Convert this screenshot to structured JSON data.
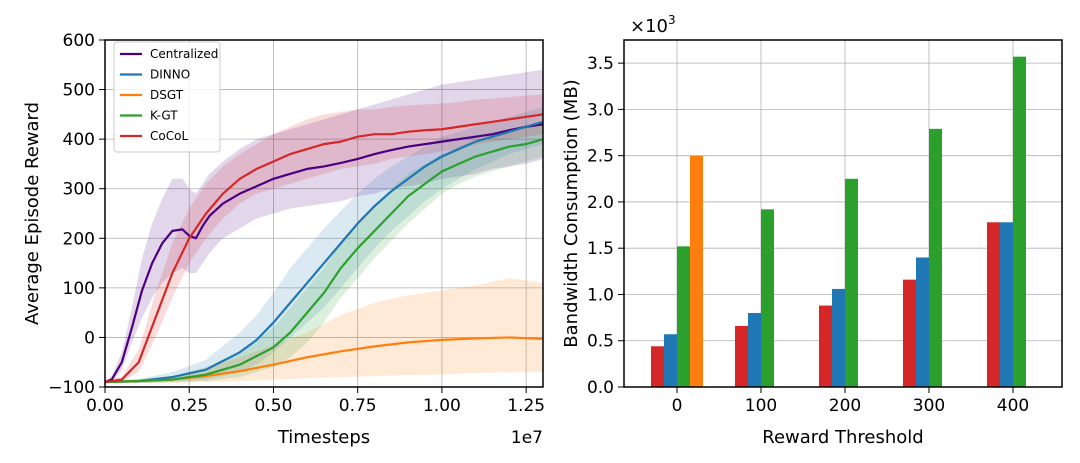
{
  "chart_data": [
    {
      "type": "line",
      "xlabel": "Timesteps",
      "ylabel": "Average Episode Reward",
      "x_offset_label": "1e7",
      "xlim": [
        0,
        1.3
      ],
      "ylim": [
        -100,
        600
      ],
      "xticks": [
        0.0,
        0.25,
        0.5,
        0.75,
        1.0,
        1.25
      ],
      "xtick_labels": [
        "0.00",
        "0.25",
        "0.50",
        "0.75",
        "1.00",
        "1.25"
      ],
      "yticks": [
        -100,
        0,
        100,
        200,
        300,
        400,
        500,
        600
      ],
      "ytick_labels": [
        "−100",
        "0",
        "100",
        "200",
        "300",
        "400",
        "500",
        "600"
      ],
      "grid": true,
      "legend_position": "top-left",
      "series": [
        {
          "name": "Centralized",
          "color": "#4b0082",
          "x": [
            0.0,
            0.02,
            0.05,
            0.08,
            0.11,
            0.14,
            0.17,
            0.2,
            0.23,
            0.25,
            0.27,
            0.29,
            0.31,
            0.35,
            0.4,
            0.45,
            0.5,
            0.55,
            0.6,
            0.65,
            0.7,
            0.75,
            0.8,
            0.85,
            0.9,
            0.95,
            1.0,
            1.05,
            1.1,
            1.15,
            1.2,
            1.25,
            1.3
          ],
          "y": [
            -90,
            -85,
            -50,
            20,
            95,
            150,
            190,
            215,
            218,
            205,
            200,
            225,
            245,
            270,
            290,
            305,
            320,
            330,
            340,
            345,
            352,
            360,
            370,
            378,
            385,
            390,
            395,
            400,
            405,
            410,
            418,
            425,
            430
          ],
          "band": [
            [
              -92,
              -88
            ],
            [
              -90,
              -78
            ],
            [
              -65,
              -30
            ],
            [
              -10,
              60
            ],
            [
              40,
              160
            ],
            [
              80,
              230
            ],
            [
              110,
              280
            ],
            [
              130,
              320
            ],
            [
              140,
              320
            ],
            [
              130,
              300
            ],
            [
              130,
              290
            ],
            [
              150,
              310
            ],
            [
              170,
              330
            ],
            [
              200,
              355
            ],
            [
              220,
              380
            ],
            [
              240,
              400
            ],
            [
              250,
              410
            ],
            [
              260,
              420
            ],
            [
              265,
              430
            ],
            [
              270,
              440
            ],
            [
              275,
              450
            ],
            [
              285,
              460
            ],
            [
              290,
              470
            ],
            [
              300,
              480
            ],
            [
              305,
              490
            ],
            [
              310,
              500
            ],
            [
              320,
              510
            ],
            [
              325,
              515
            ],
            [
              330,
              520
            ],
            [
              340,
              525
            ],
            [
              345,
              530
            ],
            [
              350,
              535
            ],
            [
              360,
              540
            ]
          ]
        },
        {
          "name": "DINNO",
          "color": "#1f77b4",
          "x": [
            0.0,
            0.1,
            0.2,
            0.3,
            0.4,
            0.45,
            0.5,
            0.55,
            0.6,
            0.65,
            0.7,
            0.75,
            0.8,
            0.85,
            0.9,
            0.95,
            1.0,
            1.05,
            1.1,
            1.15,
            1.2,
            1.25,
            1.3
          ],
          "y": [
            -90,
            -88,
            -80,
            -65,
            -30,
            -5,
            30,
            70,
            110,
            150,
            190,
            230,
            265,
            295,
            320,
            345,
            365,
            380,
            395,
            405,
            415,
            425,
            435
          ],
          "band": [
            [
              -92,
              -88
            ],
            [
              -92,
              -84
            ],
            [
              -90,
              -70
            ],
            [
              -85,
              -45
            ],
            [
              -70,
              10
            ],
            [
              -55,
              45
            ],
            [
              -30,
              90
            ],
            [
              0,
              140
            ],
            [
              30,
              180
            ],
            [
              60,
              220
            ],
            [
              100,
              255
            ],
            [
              140,
              290
            ],
            [
              180,
              320
            ],
            [
              215,
              345
            ],
            [
              245,
              365
            ],
            [
              275,
              385
            ],
            [
              300,
              405
            ],
            [
              320,
              415
            ],
            [
              340,
              425
            ],
            [
              355,
              435
            ],
            [
              370,
              445
            ],
            [
              380,
              455
            ],
            [
              390,
              465
            ]
          ]
        },
        {
          "name": "DSGT",
          "color": "#ff7f0e",
          "x": [
            0.0,
            0.1,
            0.2,
            0.3,
            0.4,
            0.5,
            0.6,
            0.7,
            0.8,
            0.9,
            1.0,
            1.1,
            1.2,
            1.3
          ],
          "y": [
            -90,
            -88,
            -85,
            -78,
            -68,
            -55,
            -40,
            -28,
            -18,
            -10,
            -5,
            -2,
            0,
            -3
          ],
          "band": [
            [
              -92,
              -88
            ],
            [
              -92,
              -84
            ],
            [
              -92,
              -78
            ],
            [
              -90,
              -62
            ],
            [
              -88,
              -40
            ],
            [
              -85,
              -15
            ],
            [
              -82,
              10
            ],
            [
              -80,
              45
            ],
            [
              -78,
              70
            ],
            [
              -76,
              85
            ],
            [
              -75,
              95
            ],
            [
              -72,
              105
            ],
            [
              -70,
              120
            ],
            [
              -70,
              110
            ]
          ]
        },
        {
          "name": "K-GT",
          "color": "#2ca02c",
          "x": [
            0.0,
            0.1,
            0.2,
            0.3,
            0.4,
            0.5,
            0.55,
            0.6,
            0.65,
            0.7,
            0.75,
            0.8,
            0.85,
            0.9,
            0.95,
            1.0,
            1.05,
            1.1,
            1.15,
            1.2,
            1.25,
            1.3
          ],
          "y": [
            -90,
            -88,
            -85,
            -75,
            -55,
            -20,
            10,
            50,
            90,
            140,
            180,
            215,
            250,
            285,
            310,
            335,
            350,
            365,
            375,
            385,
            390,
            400
          ],
          "band": [
            [
              -92,
              -88
            ],
            [
              -92,
              -84
            ],
            [
              -90,
              -78
            ],
            [
              -88,
              -60
            ],
            [
              -80,
              -30
            ],
            [
              -60,
              20
            ],
            [
              -40,
              60
            ],
            [
              -10,
              100
            ],
            [
              30,
              140
            ],
            [
              80,
              190
            ],
            [
              120,
              230
            ],
            [
              160,
              265
            ],
            [
              195,
              300
            ],
            [
              230,
              330
            ],
            [
              260,
              350
            ],
            [
              290,
              370
            ],
            [
              310,
              385
            ],
            [
              325,
              398
            ],
            [
              335,
              410
            ],
            [
              345,
              420
            ],
            [
              355,
              425
            ],
            [
              365,
              430
            ]
          ]
        },
        {
          "name": "CoCoL",
          "color": "#d62728",
          "x": [
            0.0,
            0.05,
            0.1,
            0.15,
            0.2,
            0.25,
            0.3,
            0.35,
            0.4,
            0.45,
            0.5,
            0.55,
            0.6,
            0.65,
            0.7,
            0.75,
            0.8,
            0.85,
            0.9,
            0.95,
            1.0,
            1.05,
            1.1,
            1.15,
            1.2,
            1.25,
            1.3
          ],
          "y": [
            -90,
            -85,
            -50,
            40,
            130,
            200,
            250,
            290,
            320,
            340,
            355,
            370,
            380,
            390,
            395,
            405,
            410,
            410,
            415,
            418,
            420,
            425,
            430,
            435,
            440,
            445,
            450
          ],
          "band": [
            [
              -92,
              -88
            ],
            [
              -90,
              -78
            ],
            [
              -70,
              -25
            ],
            [
              0,
              90
            ],
            [
              80,
              190
            ],
            [
              150,
              260
            ],
            [
              200,
              310
            ],
            [
              240,
              345
            ],
            [
              270,
              370
            ],
            [
              290,
              390
            ],
            [
              300,
              410
            ],
            [
              310,
              425
            ],
            [
              320,
              440
            ],
            [
              330,
              450
            ],
            [
              340,
              455
            ],
            [
              345,
              460
            ],
            [
              350,
              460
            ],
            [
              360,
              465
            ],
            [
              365,
              468
            ],
            [
              370,
              470
            ],
            [
              375,
              472
            ],
            [
              380,
              475
            ],
            [
              390,
              480
            ],
            [
              395,
              482
            ],
            [
              400,
              485
            ],
            [
              405,
              488
            ],
            [
              410,
              490
            ]
          ]
        }
      ]
    },
    {
      "type": "bar",
      "xlabel": "Reward Threshold",
      "ylabel": "Bandwidth Consumption (MB)",
      "y_scale_label": "×10",
      "y_scale_exponent": "3",
      "categories": [
        "0",
        "100",
        "200",
        "300",
        "400"
      ],
      "ylim": [
        0,
        3.75
      ],
      "yticks": [
        0.0,
        0.5,
        1.0,
        1.5,
        2.0,
        2.5,
        3.0,
        3.5
      ],
      "ytick_labels": [
        "0.0",
        "0.5",
        "1.0",
        "1.5",
        "2.0",
        "2.5",
        "3.0",
        "3.5"
      ],
      "grid": true,
      "series": [
        {
          "color": "#d62728",
          "values": [
            0.44,
            0.66,
            0.88,
            1.16,
            1.78
          ]
        },
        {
          "color": "#1f77b4",
          "values": [
            0.57,
            0.8,
            1.06,
            1.4,
            1.78
          ]
        },
        {
          "color": "#2ca02c",
          "values": [
            1.52,
            1.92,
            2.25,
            2.79,
            3.57
          ]
        },
        {
          "color": "#ff7f0e",
          "values": [
            2.5,
            0,
            0,
            0,
            0
          ]
        }
      ]
    }
  ]
}
